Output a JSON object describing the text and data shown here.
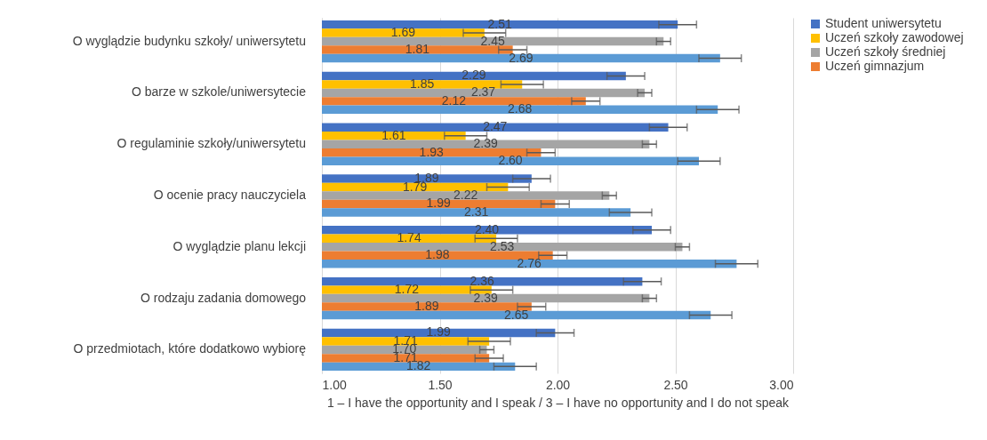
{
  "chart_data": {
    "type": "bar",
    "orientation": "horizontal",
    "xlabel": "1 – I have the opportunity and I speak / 3 – I have no opportunity and I do not speak",
    "categories": [
      "O wyglądzie budynku szkoły/ uniwersytetu",
      "O barze w szkole/uniwersytecie",
      "O regulaminie szkoły/uniwersytetu",
      "O ocenie pracy nauczyciela",
      "O wyglądzie planu lekcji",
      "O rodzaju zadania domowego",
      "O przedmiotach, które dodatkowo wybiorę"
    ],
    "series": [
      {
        "name": "Student uniwersytetu",
        "color": "#4472c4",
        "values": [
          2.51,
          2.29,
          2.47,
          1.89,
          2.4,
          2.36,
          1.99
        ],
        "value_labels": [
          "2.51",
          "2.29",
          "2.47",
          "1.89",
          "2.40",
          "2.36",
          "1.99"
        ],
        "errors": [
          0.08,
          0.08,
          0.08,
          0.08,
          0.08,
          0.08,
          0.08
        ]
      },
      {
        "name": "Uczeń szkoły zawodowej",
        "color": "#ffc000",
        "values": [
          1.69,
          1.85,
          1.61,
          1.79,
          1.74,
          1.72,
          1.71
        ],
        "value_labels": [
          "1.69",
          "1.85",
          "1.61",
          "1.79",
          "1.74",
          "1.72",
          "1.71"
        ],
        "errors": [
          0.09,
          0.09,
          0.09,
          0.09,
          0.09,
          0.09,
          0.09
        ]
      },
      {
        "name": "Uczeń szkoły średniej",
        "color": "#a5a5a5",
        "values": [
          2.45,
          2.37,
          2.39,
          2.22,
          2.53,
          2.39,
          1.7
        ],
        "value_labels": [
          "2.45",
          "2.37",
          "2.39",
          "2.22",
          "2.53",
          "2.39",
          "1.70"
        ],
        "errors": [
          0.03,
          0.03,
          0.03,
          0.03,
          0.03,
          0.03,
          0.03
        ]
      },
      {
        "name": "Uczeń gimnazjum",
        "color": "#ed7d31",
        "values": [
          1.81,
          2.12,
          1.93,
          1.99,
          1.98,
          1.89,
          1.71
        ],
        "value_labels": [
          "1.81",
          "2.12",
          "1.93",
          "1.99",
          "1.98",
          "1.89",
          "1.71"
        ],
        "errors": [
          0.06,
          0.06,
          0.06,
          0.06,
          0.06,
          0.06,
          0.06
        ]
      },
      {
        "color": "#5b9bd5",
        "values": [
          2.69,
          2.68,
          2.6,
          2.31,
          2.76,
          2.65,
          1.82
        ],
        "value_labels": [
          "2.69",
          "2.68",
          "2.60",
          "2.31",
          "2.76",
          "2.65",
          "1.82"
        ],
        "errors": [
          0.09,
          0.09,
          0.09,
          0.09,
          0.09,
          0.09,
          0.09
        ]
      }
    ],
    "xlim": [
      1,
      3
    ],
    "xticks": [
      {
        "value": 1,
        "label": "1.00"
      },
      {
        "value": 1.5,
        "label": "1.50"
      },
      {
        "value": 2,
        "label": "2.00"
      },
      {
        "value": 2.5,
        "label": "2.50"
      },
      {
        "value": 3,
        "label": "3.00"
      }
    ],
    "grid": "x",
    "legend": "right",
    "data_labels": true
  }
}
